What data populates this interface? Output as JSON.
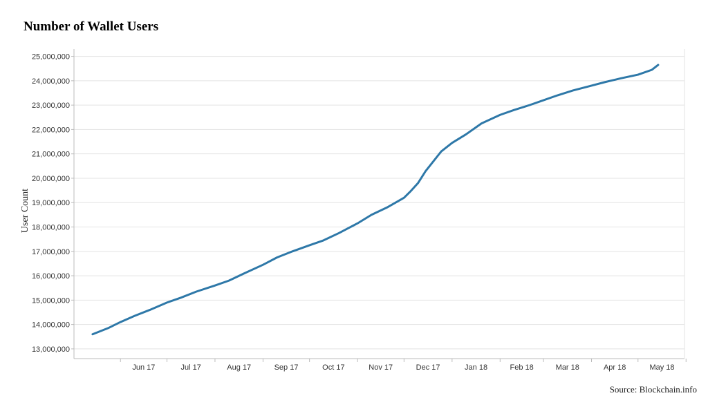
{
  "title": "Number of  Wallet Users",
  "source": "Source: Blockchain.info",
  "colors": {
    "line": "#2e78a8",
    "grid": "#e3e3e3",
    "axis": "#bbbbbb"
  },
  "chart_data": {
    "type": "line",
    "title": "Number of  Wallet Users",
    "xlabel": "",
    "ylabel": "User Count",
    "ylim": [
      12600000,
      25300000
    ],
    "grid": true,
    "x_ticks": [
      "Jun 17",
      "Jul 17",
      "Aug 17",
      "Sep 17",
      "Oct 17",
      "Nov 17",
      "Dec 17",
      "Jan 18",
      "Feb 18",
      "Mar 18",
      "Apr 18",
      "May 18"
    ],
    "y_ticks": [
      {
        "value": 13000000,
        "label": "13,000,000"
      },
      {
        "value": 14000000,
        "label": "14,000,000"
      },
      {
        "value": 15000000,
        "label": "15,000,000"
      },
      {
        "value": 16000000,
        "label": "16,000,000"
      },
      {
        "value": 17000000,
        "label": "17,000,000"
      },
      {
        "value": 18000000,
        "label": "18,000,000"
      },
      {
        "value": 19000000,
        "label": "19,000,000"
      },
      {
        "value": 20000000,
        "label": "20,000,000"
      },
      {
        "value": 21000000,
        "label": "21,000,000"
      },
      {
        "value": 22000000,
        "label": "22,000,000"
      },
      {
        "value": 23000000,
        "label": "23,000,000"
      },
      {
        "value": 24000000,
        "label": "24,000,000"
      },
      {
        "value": 25000000,
        "label": "25,000,000"
      }
    ],
    "x": [
      "2017-05-14",
      "2017-05-24",
      "2017-06-01",
      "2017-06-10",
      "2017-06-20",
      "2017-07-01",
      "2017-07-10",
      "2017-07-20",
      "2017-08-01",
      "2017-08-10",
      "2017-08-20",
      "2017-09-01",
      "2017-09-10",
      "2017-09-20",
      "2017-10-01",
      "2017-10-10",
      "2017-10-20",
      "2017-11-01",
      "2017-11-10",
      "2017-11-20",
      "2017-12-01",
      "2017-12-05",
      "2017-12-10",
      "2017-12-15",
      "2017-12-20",
      "2017-12-25",
      "2018-01-01",
      "2018-01-10",
      "2018-01-20",
      "2018-02-01",
      "2018-02-10",
      "2018-02-20",
      "2018-03-01",
      "2018-03-10",
      "2018-03-20",
      "2018-04-01",
      "2018-04-10",
      "2018-04-20",
      "2018-05-01",
      "2018-05-10",
      "2018-05-14"
    ],
    "series": [
      {
        "values": [
          13600000,
          13850000,
          14100000,
          14350000,
          14600000,
          14900000,
          15100000,
          15350000,
          15600000,
          15800000,
          16100000,
          16450000,
          16750000,
          17000000,
          17250000,
          17450000,
          17750000,
          18150000,
          18500000,
          18800000,
          19200000,
          19450000,
          19800000,
          20300000,
          20700000,
          21100000,
          21450000,
          21800000,
          22250000,
          22600000,
          22800000,
          23000000,
          23200000,
          23400000,
          23600000,
          23800000,
          23950000,
          24100000,
          24250000,
          24450000,
          24650000
        ]
      }
    ]
  }
}
